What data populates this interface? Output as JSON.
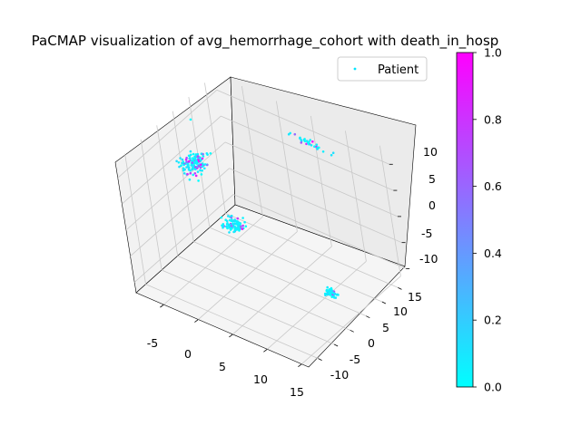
{
  "chart_data": {
    "type": "scatter",
    "projection": "3d",
    "title": "PaCMAP visualization of avg_hemorrhage_cohort with death_in_hosp",
    "xlabel": "",
    "ylabel": "",
    "zlabel": "",
    "xlim": [
      -9,
      16
    ],
    "ylim": [
      -13,
      18
    ],
    "zlim": [
      -12,
      13
    ],
    "x_ticks": [
      -5,
      0,
      5,
      10,
      15
    ],
    "y_ticks": [
      -10,
      -5,
      0,
      5,
      10,
      15
    ],
    "z_ticks": [
      -10,
      -5,
      0,
      5,
      10
    ],
    "grid": true,
    "legend": {
      "placement": "upper-right",
      "entries": [
        "Patient"
      ]
    },
    "colormap": "cool",
    "colorbar": {
      "range": [
        0,
        1
      ],
      "ticks": [
        "0.0",
        "0.2",
        "0.4",
        "0.6",
        "0.8",
        "1.0"
      ]
    },
    "clusters": [
      {
        "center": [
          -7,
          5,
          4
        ],
        "spread": [
          1.5,
          2.5,
          1.5
        ],
        "count": 140,
        "positive_fraction": 0.18
      },
      {
        "center": [
          -3,
          6,
          -6
        ],
        "spread": [
          1.5,
          1.5,
          1.0
        ],
        "count": 90,
        "positive_fraction": 0.12
      },
      {
        "center": [
          5,
          16,
          9
        ],
        "spread": [
          3.0,
          0.5,
          0.5
        ],
        "count": 30,
        "positive_fraction": 0.45
      },
      {
        "center": [
          14,
          0,
          -6
        ],
        "spread": [
          0.7,
          0.7,
          0.7
        ],
        "count": 60,
        "positive_fraction": 0.08
      }
    ],
    "outliers": [
      {
        "x": -7,
        "y": 6,
        "z": 12,
        "value": 0.0
      }
    ]
  }
}
